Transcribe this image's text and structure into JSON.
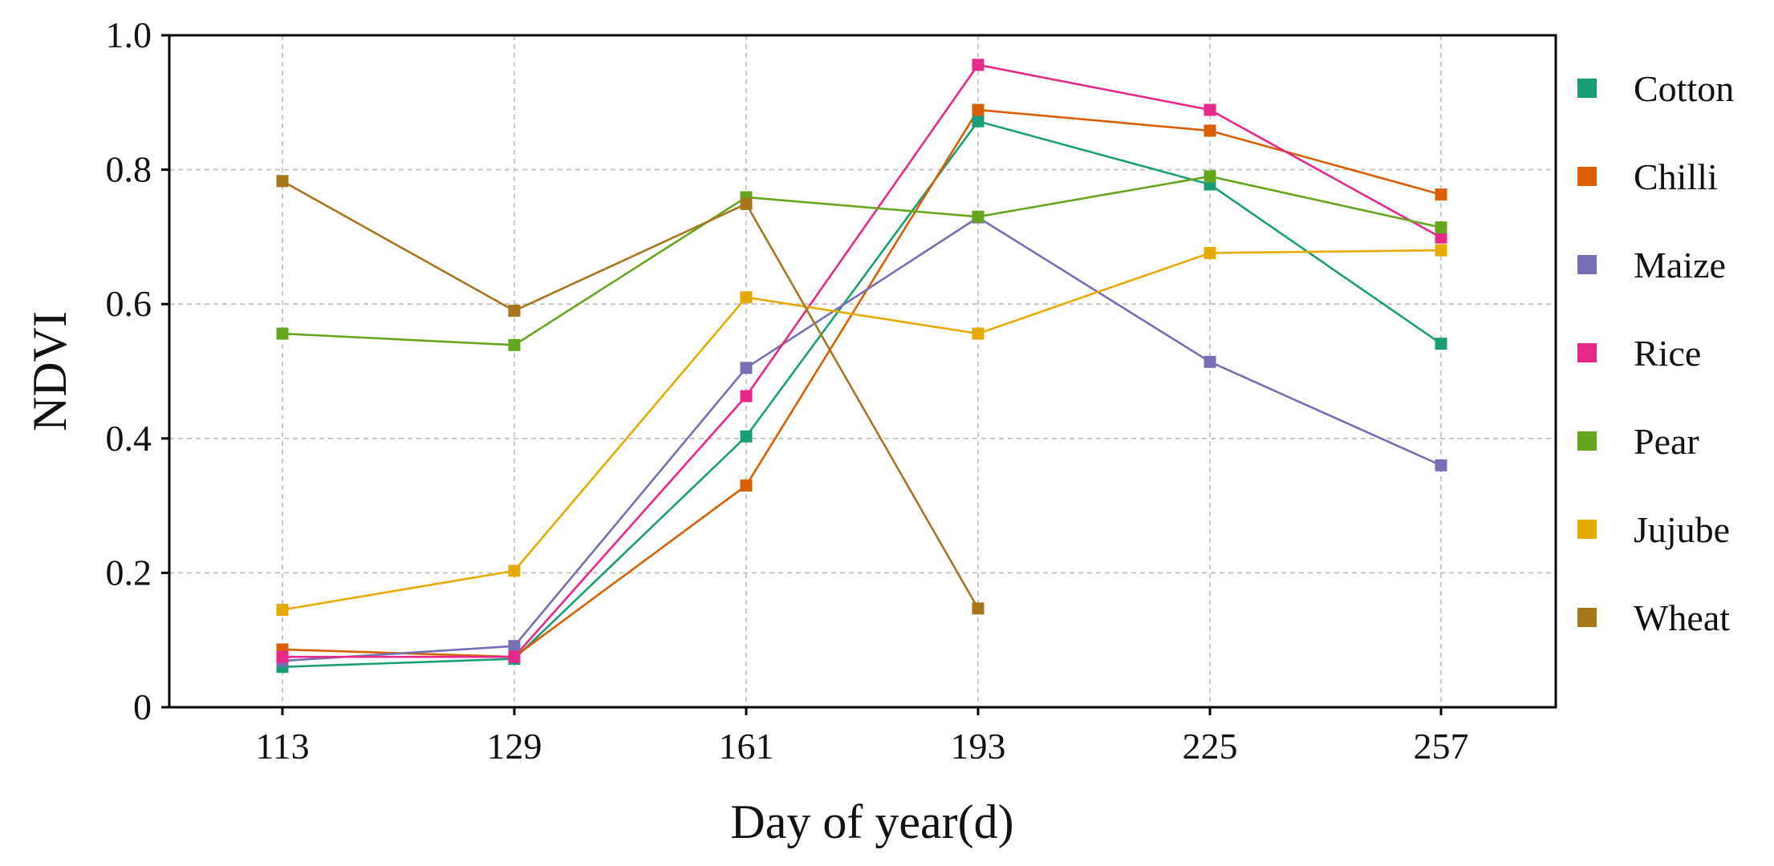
{
  "chart_data": {
    "type": "line",
    "title": "",
    "xlabel": "Day of year(d)",
    "ylabel": "NDVI",
    "x": [
      113,
      129,
      161,
      193,
      225,
      257
    ],
    "x_tick_labels": [
      "113",
      "129",
      "161",
      "193",
      "225",
      "257"
    ],
    "ylim": [
      0,
      1.0
    ],
    "y_ticks": [
      0,
      0.2,
      0.4,
      0.6,
      0.8,
      1.0
    ],
    "y_tick_labels": [
      "0",
      "0.2",
      "0.4",
      "0.6",
      "0.8",
      "1.0"
    ],
    "grid": true,
    "legend_position": "right-outside",
    "marker": "square",
    "series": [
      {
        "name": "Cotton",
        "color": "#1b9e77",
        "values": [
          0.06,
          0.072,
          0.403,
          0.872,
          0.778,
          0.541
        ]
      },
      {
        "name": "Chilli",
        "color": "#d95f02",
        "values": [
          0.086,
          0.075,
          0.33,
          0.889,
          0.858,
          0.763
        ]
      },
      {
        "name": "Maize",
        "color": "#7570b3",
        "values": [
          0.069,
          0.091,
          0.505,
          0.729,
          0.514,
          0.36
        ]
      },
      {
        "name": "Rice",
        "color": "#e7298a",
        "values": [
          0.075,
          0.075,
          0.463,
          0.956,
          0.889,
          0.699
        ]
      },
      {
        "name": "Pear",
        "color": "#66a61e",
        "values": [
          0.556,
          0.539,
          0.759,
          0.73,
          0.79,
          0.714
        ]
      },
      {
        "name": "Jujube",
        "color": "#e6ab02",
        "values": [
          0.145,
          0.203,
          0.61,
          0.556,
          0.676,
          0.68
        ]
      },
      {
        "name": "Wheat",
        "color": "#a6761d",
        "values": [
          0.783,
          0.59,
          0.749,
          0.147,
          null,
          null
        ]
      }
    ]
  }
}
